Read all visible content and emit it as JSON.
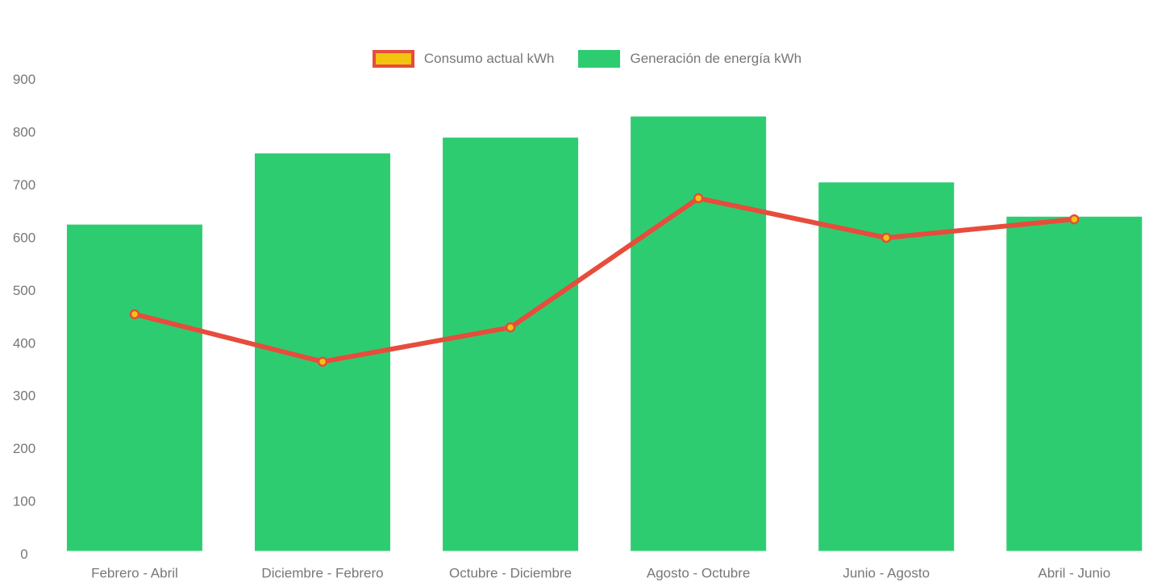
{
  "legend": {
    "items": [
      {
        "label": "Consumo actual kWh"
      },
      {
        "label": "Generación de energía kWh"
      }
    ]
  },
  "colors": {
    "bar": "#2ecc71",
    "line": "#e74c3c",
    "point": "#f1c40f",
    "axis_text": "#777777",
    "background": "#ffffff"
  },
  "chart_data": {
    "type": "bar",
    "title": "",
    "xlabel": "",
    "ylabel": "",
    "categories": [
      "Febrero - Abril",
      "Diciembre - Febrero",
      "Octubre - Diciembre",
      "Agosto - Octubre",
      "Junio - Agosto",
      "Abril - Junio"
    ],
    "series": [
      {
        "name": "Consumo actual kWh",
        "type": "line",
        "color": "#e74c3c",
        "point_color": "#f1c40f",
        "values": [
          455,
          365,
          430,
          675,
          600,
          635
        ]
      },
      {
        "name": "Generación de energía kWh",
        "type": "bar",
        "color": "#2ecc71",
        "values": [
          625,
          760,
          790,
          830,
          705,
          640
        ]
      }
    ],
    "ylim": [
      0,
      900
    ],
    "y_tick_labels": [
      "0",
      "100",
      "200",
      "300",
      "400",
      "500",
      "600",
      "700",
      "800",
      "900"
    ],
    "grid": "off",
    "legend_position": "top-center"
  }
}
